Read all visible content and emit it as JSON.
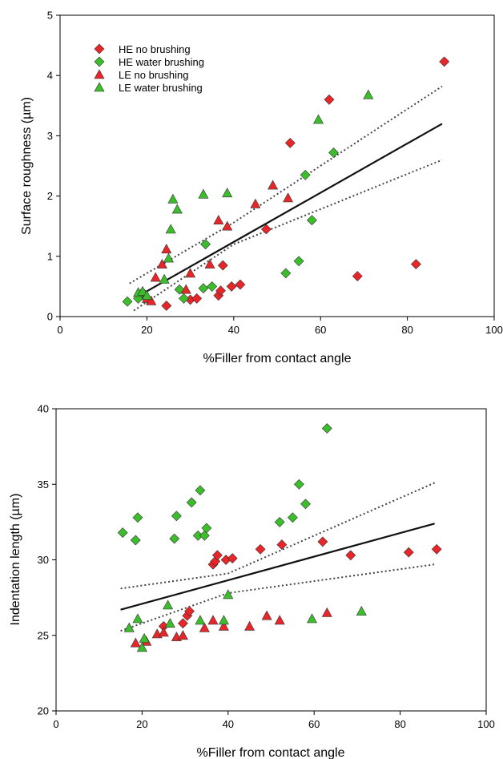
{
  "chart_data": [
    {
      "type": "scatter",
      "xlabel": "%Filler from contact angle",
      "ylabel": "Surface roughness (µm)",
      "xlim": [
        0,
        100
      ],
      "ylim": [
        0,
        5
      ],
      "xticks": [
        0,
        20,
        40,
        60,
        80,
        100
      ],
      "yticks": [
        0,
        1,
        2,
        3,
        4,
        5
      ],
      "grid": false,
      "legend_position": "top-left",
      "legend": [
        "HE no brushing",
        "HE water brushing",
        "LE no brushing",
        "LE water brushing"
      ],
      "series": [
        {
          "name": "HE no brushing",
          "marker": "diamond",
          "color": "#e8262a",
          "points": [
            [
              24.5,
              0.18
            ],
            [
              30,
              0.28
            ],
            [
              31.5,
              0.3
            ],
            [
              36.5,
              0.35
            ],
            [
              37,
              0.43
            ],
            [
              37.5,
              0.85
            ],
            [
              39.5,
              0.5
            ],
            [
              41.5,
              0.53
            ],
            [
              47.5,
              1.45
            ],
            [
              53,
              2.88
            ],
            [
              62,
              3.6
            ],
            [
              68.5,
              0.67
            ],
            [
              82,
              0.87
            ],
            [
              88.5,
              4.23
            ]
          ]
        },
        {
          "name": "HE water brushing",
          "marker": "diamond",
          "color": "#3cbd2c",
          "points": [
            [
              15.5,
              0.25
            ],
            [
              18,
              0.3
            ],
            [
              19,
              0.4
            ],
            [
              20,
              0.3
            ],
            [
              27.5,
              0.45
            ],
            [
              28.5,
              0.3
            ],
            [
              33,
              0.47
            ],
            [
              33.5,
              1.2
            ],
            [
              35,
              0.5
            ],
            [
              52,
              0.72
            ],
            [
              55,
              0.92
            ],
            [
              56.5,
              2.35
            ],
            [
              58,
              1.6
            ],
            [
              63,
              2.72
            ]
          ]
        },
        {
          "name": "LE no brushing",
          "marker": "triangle",
          "color": "#e8262a",
          "points": [
            [
              20,
              0.3
            ],
            [
              21,
              0.26
            ],
            [
              22,
              0.65
            ],
            [
              23.5,
              0.87
            ],
            [
              24.5,
              1.12
            ],
            [
              29,
              0.45
            ],
            [
              30,
              0.72
            ],
            [
              34.5,
              0.87
            ],
            [
              36.5,
              1.6
            ],
            [
              38.5,
              1.5
            ],
            [
              45,
              1.87
            ],
            [
              49,
              2.18
            ],
            [
              52.5,
              1.97
            ]
          ]
        },
        {
          "name": "LE water brushing",
          "marker": "triangle",
          "color": "#3cbd2c",
          "points": [
            [
              18,
              0.4
            ],
            [
              19,
              0.42
            ],
            [
              20,
              0.35
            ],
            [
              24,
              0.62
            ],
            [
              25,
              0.97
            ],
            [
              25.5,
              1.45
            ],
            [
              26,
              1.95
            ],
            [
              27,
              1.78
            ],
            [
              33,
              2.03
            ],
            [
              38.5,
              2.05
            ],
            [
              59.5,
              3.27
            ],
            [
              71,
              3.68
            ]
          ]
        }
      ],
      "fit": {
        "x": [
          19,
          88
        ],
        "y": [
          0.38,
          3.2
        ]
      },
      "ci_upper": {
        "x": [
          16,
          40,
          88
        ],
        "y": [
          0.55,
          1.56,
          3.82
        ]
      },
      "ci_lower": {
        "x": [
          17,
          40,
          88
        ],
        "y": [
          0.1,
          1.2,
          2.6
        ]
      }
    },
    {
      "type": "scatter",
      "xlabel": "%Filler from contact angle",
      "ylabel": "Indentation length (µm)",
      "xlim": [
        0,
        100
      ],
      "ylim": [
        20,
        40
      ],
      "xticks": [
        0,
        20,
        40,
        60,
        80,
        100
      ],
      "yticks": [
        20,
        25,
        30,
        35,
        40
      ],
      "grid": false,
      "series": [
        {
          "name": "HE no brushing",
          "marker": "diamond",
          "color": "#e8262a",
          "points": [
            [
              25,
              25.6
            ],
            [
              29.5,
              25.8
            ],
            [
              30.5,
              26.3
            ],
            [
              31,
              26.6
            ],
            [
              36.5,
              29.7
            ],
            [
              37,
              29.9
            ],
            [
              37.5,
              30.3
            ],
            [
              39.5,
              30.0
            ],
            [
              41,
              30.1
            ],
            [
              47.5,
              30.7
            ],
            [
              52.5,
              31.0
            ],
            [
              62,
              31.2
            ],
            [
              68.5,
              30.3
            ],
            [
              82,
              30.5
            ],
            [
              88.5,
              30.7
            ]
          ]
        },
        {
          "name": "HE water brushing",
          "marker": "diamond",
          "color": "#3cbd2c",
          "points": [
            [
              15.5,
              31.8
            ],
            [
              18.5,
              31.3
            ],
            [
              19,
              32.8
            ],
            [
              27.5,
              31.4
            ],
            [
              28,
              32.9
            ],
            [
              31.5,
              33.8
            ],
            [
              33,
              31.6
            ],
            [
              33.5,
              34.6
            ],
            [
              34.5,
              31.6
            ],
            [
              35,
              32.1
            ],
            [
              52,
              32.5
            ],
            [
              55,
              32.8
            ],
            [
              56.5,
              35.0
            ],
            [
              58,
              33.7
            ],
            [
              63,
              38.7
            ]
          ]
        },
        {
          "name": "LE no brushing",
          "marker": "triangle",
          "color": "#e8262a",
          "points": [
            [
              18.5,
              24.5
            ],
            [
              21,
              24.6
            ],
            [
              23.5,
              25.1
            ],
            [
              25,
              25.2
            ],
            [
              28,
              24.9
            ],
            [
              29.5,
              25.0
            ],
            [
              34.5,
              25.5
            ],
            [
              36.5,
              26.0
            ],
            [
              39,
              25.6
            ],
            [
              45,
              25.6
            ],
            [
              49,
              26.3
            ],
            [
              52,
              26.0
            ],
            [
              63,
              26.5
            ]
          ]
        },
        {
          "name": "LE water brushing",
          "marker": "triangle",
          "color": "#3cbd2c",
          "points": [
            [
              17,
              25.5
            ],
            [
              19,
              26.1
            ],
            [
              20,
              24.2
            ],
            [
              20.5,
              24.8
            ],
            [
              26,
              27.0
            ],
            [
              26.5,
              25.8
            ],
            [
              33.5,
              26.0
            ],
            [
              39,
              26.0
            ],
            [
              40,
              27.7
            ],
            [
              59.5,
              26.1
            ],
            [
              71,
              26.6
            ]
          ]
        }
      ],
      "fit": {
        "x": [
          15,
          88
        ],
        "y": [
          26.7,
          32.4
        ]
      },
      "ci_upper": {
        "x": [
          15,
          40,
          88
        ],
        "y": [
          28.1,
          29.1,
          35.1
        ]
      },
      "ci_lower": {
        "x": [
          15,
          40,
          88
        ],
        "y": [
          25.3,
          27.8,
          29.7
        ]
      }
    }
  ]
}
